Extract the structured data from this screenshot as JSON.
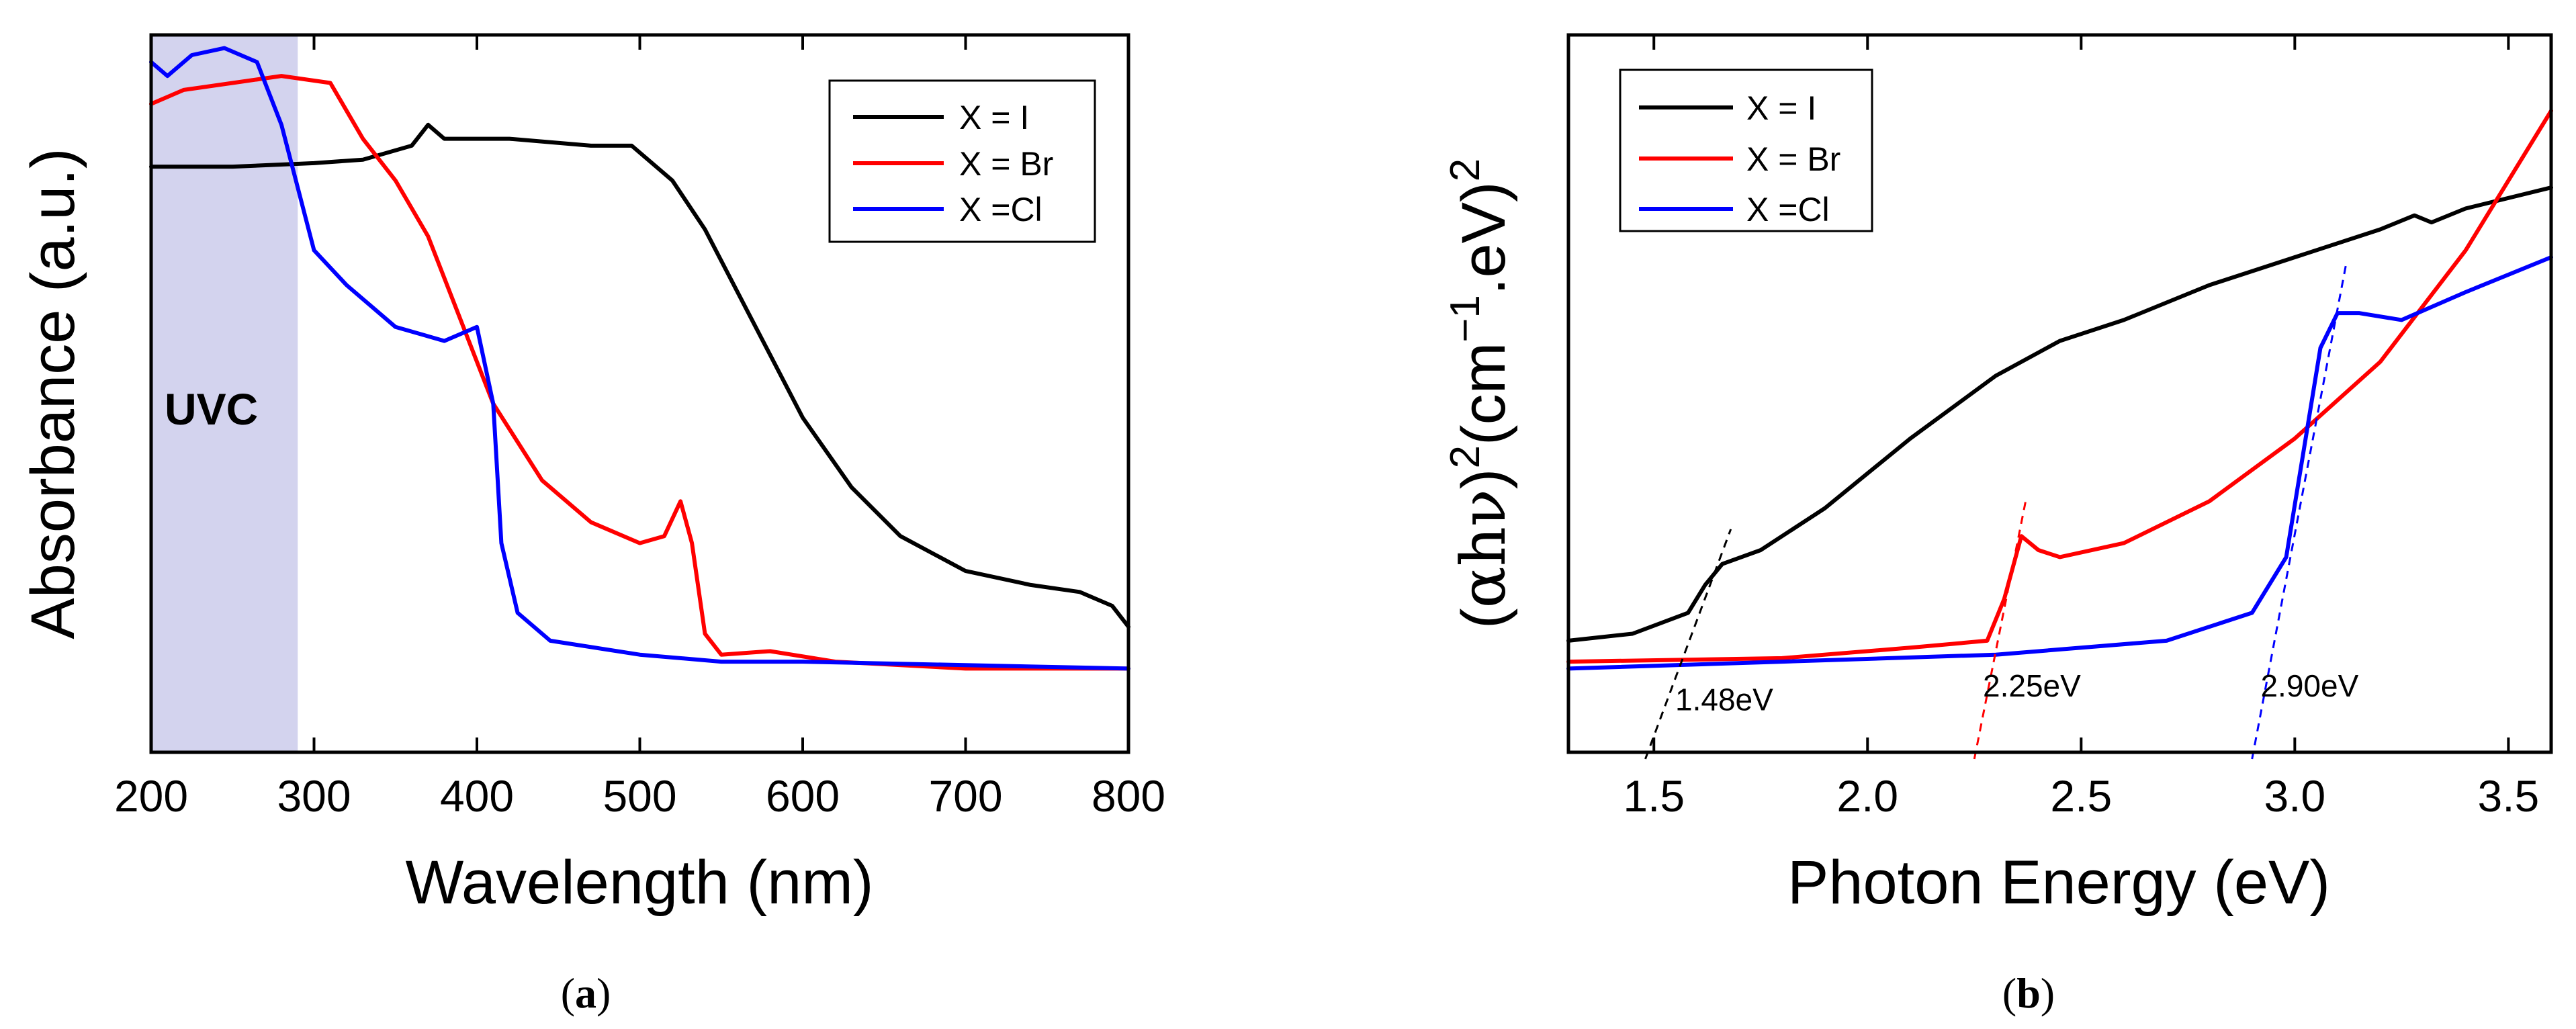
{
  "chart_data": [
    {
      "type": "line",
      "panel": "a",
      "caption": "(a)",
      "caption_letter": "a",
      "xlabel": "Wavelength (nm)",
      "ylabel": "Absorbance (a.u.)",
      "xlim": [
        200,
        800
      ],
      "ylim": [
        0,
        1
      ],
      "xticks": [
        200,
        300,
        400,
        500,
        600,
        700,
        800
      ],
      "yticks_shown": false,
      "shaded_band": {
        "x0": 200,
        "x1": 290,
        "label": "UVC",
        "color": "#d3d3ee"
      },
      "legend": {
        "placement": "top-right",
        "entries": [
          "X = I",
          "X = Br",
          "X =Cl"
        ]
      },
      "series": [
        {
          "name": "X = I",
          "color": "#000000",
          "x": [
            200,
            250,
            300,
            330,
            360,
            370,
            380,
            420,
            470,
            495,
            520,
            540,
            560,
            580,
            600,
            630,
            660,
            700,
            740,
            770,
            790,
            800
          ],
          "y": [
            0.84,
            0.84,
            0.845,
            0.85,
            0.87,
            0.9,
            0.88,
            0.88,
            0.87,
            0.87,
            0.82,
            0.75,
            0.66,
            0.57,
            0.48,
            0.38,
            0.31,
            0.26,
            0.24,
            0.23,
            0.21,
            0.18
          ]
        },
        {
          "name": "X = Br",
          "color": "#ff0000",
          "x": [
            200,
            220,
            250,
            280,
            310,
            330,
            350,
            370,
            390,
            410,
            440,
            470,
            500,
            515,
            525,
            532,
            540,
            550,
            580,
            620,
            700,
            800
          ],
          "y": [
            0.93,
            0.95,
            0.96,
            0.97,
            0.96,
            0.88,
            0.82,
            0.74,
            0.62,
            0.5,
            0.39,
            0.33,
            0.3,
            0.31,
            0.36,
            0.3,
            0.17,
            0.14,
            0.145,
            0.13,
            0.12,
            0.12
          ]
        },
        {
          "name": "X =Cl",
          "color": "#0000ff",
          "x": [
            200,
            210,
            225,
            245,
            265,
            280,
            300,
            320,
            350,
            380,
            400,
            410,
            415,
            425,
            445,
            500,
            550,
            600,
            700,
            800
          ],
          "y": [
            0.99,
            0.97,
            1.0,
            1.01,
            0.99,
            0.9,
            0.72,
            0.67,
            0.61,
            0.59,
            0.61,
            0.5,
            0.3,
            0.2,
            0.16,
            0.14,
            0.13,
            0.13,
            0.125,
            0.12
          ]
        }
      ]
    },
    {
      "type": "line",
      "panel": "b",
      "caption": "(b)",
      "caption_letter": "b",
      "xlabel": "Photon Energy (eV)",
      "ylabel_parts": {
        "open": "(",
        "greek": "αhν",
        "close": ")",
        "exp1": "2",
        "mid": "(cm",
        "exp2": "−1",
        "tail": ".eV)",
        "exp3": "2"
      },
      "xlim": [
        1.3,
        3.6
      ],
      "ylim": [
        0,
        1
      ],
      "xticks": [
        "1.5",
        "2.0",
        "2.5",
        "3.0",
        "3.5"
      ],
      "yticks_shown": false,
      "legend": {
        "placement": "top-left",
        "entries": [
          "X = I",
          "X = Br",
          "X =Cl"
        ]
      },
      "series": [
        {
          "name": "X = I",
          "color": "#000000",
          "x": [
            1.3,
            1.45,
            1.58,
            1.62,
            1.66,
            1.75,
            1.9,
            2.1,
            2.3,
            2.45,
            2.6,
            2.8,
            3.0,
            3.2,
            3.28,
            3.32,
            3.4,
            3.6
          ],
          "y": [
            0.16,
            0.17,
            0.2,
            0.24,
            0.27,
            0.29,
            0.35,
            0.45,
            0.54,
            0.59,
            0.62,
            0.67,
            0.71,
            0.75,
            0.77,
            0.76,
            0.78,
            0.81
          ]
        },
        {
          "name": "X = Br",
          "color": "#ff0000",
          "x": [
            1.3,
            1.8,
            2.1,
            2.28,
            2.32,
            2.36,
            2.4,
            2.45,
            2.6,
            2.8,
            3.0,
            3.2,
            3.4,
            3.6
          ],
          "y": [
            0.13,
            0.135,
            0.15,
            0.16,
            0.22,
            0.31,
            0.29,
            0.28,
            0.3,
            0.36,
            0.45,
            0.56,
            0.72,
            0.92
          ]
        },
        {
          "name": "X =Cl",
          "color": "#0000ff",
          "x": [
            1.3,
            1.8,
            2.3,
            2.7,
            2.9,
            2.98,
            3.02,
            3.06,
            3.1,
            3.15,
            3.25,
            3.4,
            3.6
          ],
          "y": [
            0.12,
            0.13,
            0.14,
            0.16,
            0.2,
            0.28,
            0.43,
            0.58,
            0.63,
            0.63,
            0.62,
            0.66,
            0.71
          ]
        }
      ],
      "fit_lines": [
        {
          "series": "X = I",
          "color": "#000000",
          "x": [
            1.48,
            1.68
          ],
          "y": [
            0.0,
            0.32
          ],
          "label": "1.48eV",
          "label_at": [
            1.55,
            0.06
          ]
        },
        {
          "series": "X = Br",
          "color": "#ff0000",
          "x": [
            2.25,
            2.37
          ],
          "y": [
            0.0,
            0.36
          ],
          "label": "2.25eV",
          "label_at": [
            2.27,
            0.08
          ]
        },
        {
          "series": "X =Cl",
          "color": "#0000ff",
          "x": [
            2.9,
            3.12
          ],
          "y": [
            0.0,
            0.7
          ],
          "label": "2.90eV",
          "label_at": [
            2.92,
            0.08
          ]
        }
      ]
    }
  ]
}
